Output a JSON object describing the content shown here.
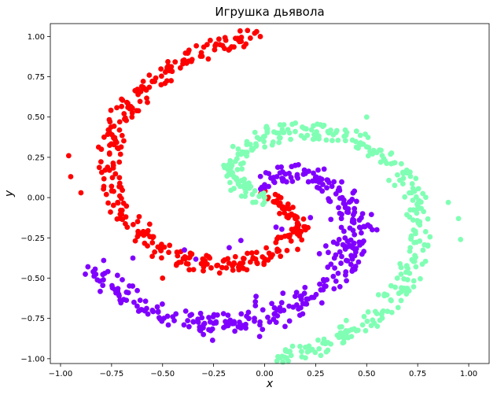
{
  "chart_data": {
    "type": "scatter",
    "title": "Игрушка дьявола",
    "xlabel": "x",
    "ylabel": "y",
    "xlim": [
      -1.05,
      1.1
    ],
    "ylim": [
      -1.03,
      1.08
    ],
    "xticks": [
      "−1.00",
      "−0.75",
      "−0.50",
      "−0.25",
      "0.00",
      "0.25",
      "0.50",
      "0.75",
      "1.00"
    ],
    "xtick_values": [
      -1.0,
      -0.75,
      -0.5,
      -0.25,
      0.0,
      0.25,
      0.5,
      0.75,
      1.0
    ],
    "yticks": [
      "1.00",
      "0.75",
      "0.50",
      "0.25",
      "0.00",
      "−0.25",
      "−0.50",
      "−0.75",
      "−1.00"
    ],
    "ytick_values": [
      1.0,
      0.75,
      0.5,
      0.25,
      0.0,
      -0.25,
      -0.5,
      -0.75,
      -1.0
    ],
    "grid": false,
    "legend": "none",
    "series": [
      {
        "color": "#ff0000",
        "points": [
          [
            0.0,
            0.0
          ],
          [
            0.06,
            -0.02
          ],
          [
            0.12,
            -0.07
          ],
          [
            0.15,
            -0.13
          ],
          [
            0.16,
            -0.2
          ],
          [
            0.13,
            -0.27
          ],
          [
            0.07,
            -0.33
          ],
          [
            0.0,
            -0.38
          ],
          [
            -0.07,
            -0.4
          ],
          [
            -0.15,
            -0.41
          ],
          [
            -0.23,
            -0.42
          ],
          [
            -0.31,
            -0.41
          ],
          [
            -0.39,
            -0.38
          ],
          [
            -0.47,
            -0.34
          ],
          [
            -0.55,
            -0.28
          ],
          [
            -0.62,
            -0.21
          ],
          [
            -0.68,
            -0.12
          ],
          [
            -0.72,
            -0.03
          ],
          [
            -0.75,
            0.07
          ],
          [
            -0.76,
            0.17
          ],
          [
            -0.76,
            0.27
          ],
          [
            -0.74,
            0.37
          ],
          [
            -0.71,
            0.47
          ],
          [
            -0.67,
            0.56
          ],
          [
            -0.62,
            0.64
          ],
          [
            -0.55,
            0.72
          ],
          [
            -0.48,
            0.79
          ],
          [
            -0.4,
            0.85
          ],
          [
            -0.31,
            0.9
          ],
          [
            -0.22,
            0.95
          ],
          [
            -0.13,
            0.98
          ],
          [
            -0.07,
            0.99
          ],
          [
            -0.96,
            0.26
          ],
          [
            -0.95,
            0.13
          ],
          [
            -0.9,
            0.03
          ],
          [
            -0.5,
            -0.5
          ],
          [
            0.2,
            -0.2
          ],
          [
            -0.65,
            0.5
          ],
          [
            -0.8,
            0.3
          ]
        ]
      },
      {
        "color": "#80ffb4",
        "points": [
          [
            0.0,
            0.0
          ],
          [
            -0.06,
            0.02
          ],
          [
            -0.12,
            0.07
          ],
          [
            -0.15,
            0.13
          ],
          [
            -0.16,
            0.2
          ],
          [
            -0.13,
            0.27
          ],
          [
            -0.07,
            0.33
          ],
          [
            0.0,
            0.38
          ],
          [
            0.07,
            0.4
          ],
          [
            0.15,
            0.41
          ],
          [
            0.23,
            0.42
          ],
          [
            0.31,
            0.41
          ],
          [
            0.39,
            0.38
          ],
          [
            0.47,
            0.34
          ],
          [
            0.55,
            0.28
          ],
          [
            0.62,
            0.21
          ],
          [
            0.68,
            0.12
          ],
          [
            0.72,
            0.03
          ],
          [
            0.75,
            -0.07
          ],
          [
            0.76,
            -0.17
          ],
          [
            0.76,
            -0.27
          ],
          [
            0.74,
            -0.37
          ],
          [
            0.71,
            -0.47
          ],
          [
            0.67,
            -0.56
          ],
          [
            0.62,
            -0.64
          ],
          [
            0.55,
            -0.72
          ],
          [
            0.48,
            -0.79
          ],
          [
            0.4,
            -0.85
          ],
          [
            0.31,
            -0.9
          ],
          [
            0.22,
            -0.95
          ],
          [
            0.13,
            -0.98
          ],
          [
            0.07,
            -0.99
          ],
          [
            0.96,
            -0.26
          ],
          [
            0.95,
            -0.13
          ],
          [
            0.9,
            -0.03
          ],
          [
            0.5,
            0.5
          ],
          [
            -0.2,
            0.2
          ],
          [
            0.65,
            -0.5
          ],
          [
            0.8,
            -0.3
          ]
        ]
      },
      {
        "color": "#8000ff",
        "points": [
          [
            0.0,
            0.08
          ],
          [
            0.06,
            0.13
          ],
          [
            0.12,
            0.15
          ],
          [
            0.2,
            0.15
          ],
          [
            0.27,
            0.12
          ],
          [
            0.33,
            0.07
          ],
          [
            0.38,
            0.0
          ],
          [
            0.41,
            -0.07
          ],
          [
            0.43,
            -0.15
          ],
          [
            0.44,
            -0.23
          ],
          [
            0.43,
            -0.31
          ],
          [
            0.4,
            -0.39
          ],
          [
            0.36,
            -0.47
          ],
          [
            0.3,
            -0.55
          ],
          [
            0.23,
            -0.62
          ],
          [
            0.14,
            -0.68
          ],
          [
            0.05,
            -0.72
          ],
          [
            -0.05,
            -0.75
          ],
          [
            -0.15,
            -0.77
          ],
          [
            -0.25,
            -0.78
          ],
          [
            -0.35,
            -0.77
          ],
          [
            -0.45,
            -0.74
          ],
          [
            -0.55,
            -0.7
          ],
          [
            -0.64,
            -0.65
          ],
          [
            -0.72,
            -0.58
          ],
          [
            -0.79,
            -0.51
          ],
          [
            -0.84,
            -0.46
          ],
          [
            0.48,
            -0.1
          ],
          [
            0.46,
            -0.4
          ],
          [
            0.3,
            -0.3
          ],
          [
            -0.3,
            -0.85
          ],
          [
            0.1,
            -0.8
          ],
          [
            0.55,
            -0.2
          ],
          [
            0.15,
            0.2
          ],
          [
            0.44,
            0.04
          ]
        ]
      }
    ]
  }
}
